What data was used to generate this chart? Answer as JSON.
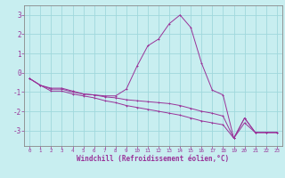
{
  "xlabel": "Windchill (Refroidissement éolien,°C)",
  "background_color": "#c8eef0",
  "grid_color": "#a0d8dc",
  "line_color": "#993399",
  "spine_color": "#888888",
  "x_ticks": [
    0,
    1,
    2,
    3,
    4,
    5,
    6,
    7,
    8,
    9,
    10,
    11,
    12,
    13,
    14,
    15,
    16,
    17,
    18,
    19,
    20,
    21,
    22,
    23
  ],
  "y_ticks": [
    -3,
    -2,
    -1,
    0,
    1,
    2,
    3
  ],
  "xlim": [
    -0.5,
    23.5
  ],
  "ylim": [
    -3.8,
    3.5
  ],
  "line1_x": [
    0,
    1,
    2,
    3,
    4,
    5,
    6,
    7,
    8,
    9,
    10,
    11,
    12,
    13,
    14,
    15,
    16,
    17,
    18,
    19,
    20,
    21,
    22,
    23
  ],
  "line1_y": [
    -0.3,
    -0.65,
    -0.8,
    -0.8,
    -0.95,
    -1.1,
    -1.15,
    -1.2,
    -1.2,
    -0.85,
    0.35,
    1.4,
    1.75,
    2.55,
    3.0,
    2.35,
    0.5,
    -0.9,
    -1.15,
    -3.4,
    -2.35,
    -3.1,
    -3.1,
    -3.1
  ],
  "line2_x": [
    0,
    1,
    2,
    3,
    4,
    5,
    6,
    7,
    8,
    9,
    10,
    11,
    12,
    13,
    14,
    15,
    16,
    17,
    18,
    19,
    20,
    21,
    22,
    23
  ],
  "line2_y": [
    -0.3,
    -0.65,
    -0.85,
    -0.85,
    -1.0,
    -1.1,
    -1.15,
    -1.25,
    -1.3,
    -1.4,
    -1.45,
    -1.5,
    -1.55,
    -1.6,
    -1.7,
    -1.85,
    -2.0,
    -2.1,
    -2.25,
    -3.4,
    -2.35,
    -3.1,
    -3.1,
    -3.1
  ],
  "line3_x": [
    0,
    1,
    2,
    3,
    4,
    5,
    6,
    7,
    8,
    9,
    10,
    11,
    12,
    13,
    14,
    15,
    16,
    17,
    18,
    19,
    20,
    21,
    22,
    23
  ],
  "line3_y": [
    -0.3,
    -0.65,
    -0.95,
    -0.95,
    -1.1,
    -1.2,
    -1.3,
    -1.45,
    -1.55,
    -1.7,
    -1.8,
    -1.9,
    -2.0,
    -2.1,
    -2.2,
    -2.35,
    -2.5,
    -2.6,
    -2.7,
    -3.4,
    -2.6,
    -3.1,
    -3.1,
    -3.1
  ]
}
